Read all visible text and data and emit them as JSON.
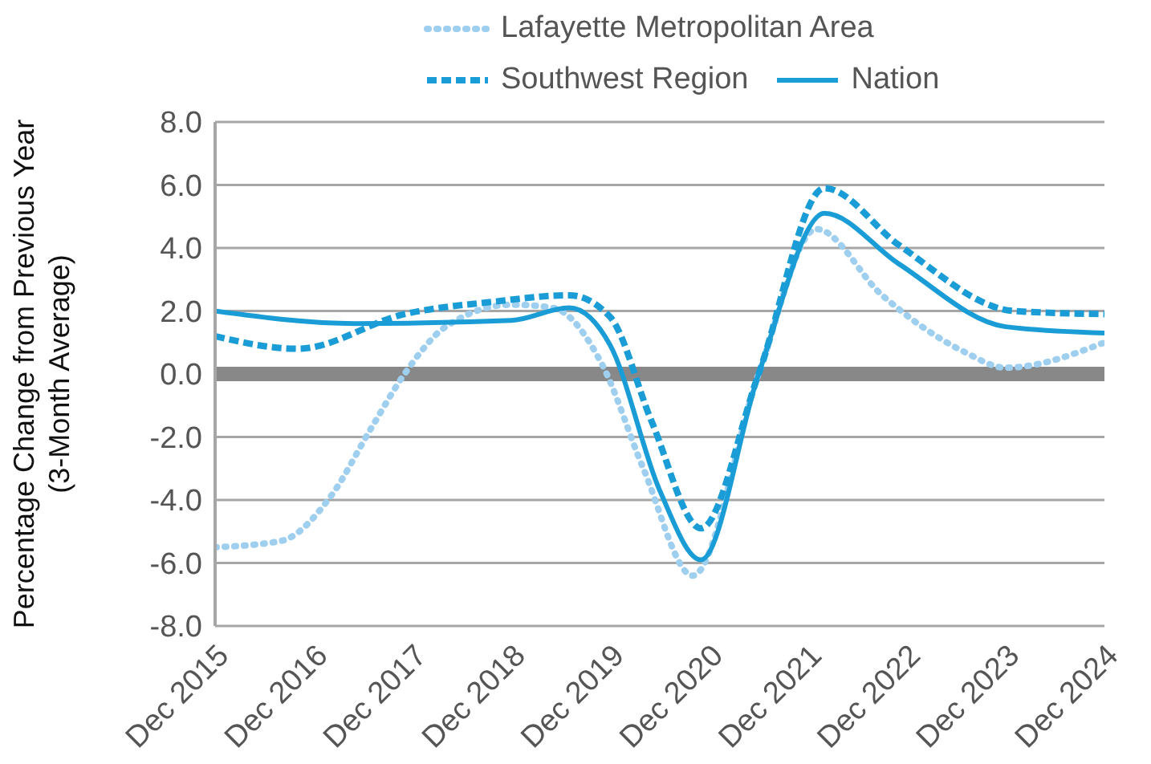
{
  "chart_data": {
    "type": "line",
    "ylabel": "Percentage Change from Previous Year (3-Month Average)",
    "xlim": [
      "2015-12",
      "2024-12"
    ],
    "xticks": [
      {
        "value": "2015-12",
        "label": "Dec 2015"
      },
      {
        "value": "2016-12",
        "label": "Dec 2016"
      },
      {
        "value": "2017-12",
        "label": "Dec 2017"
      },
      {
        "value": "2018-12",
        "label": "Dec 2018"
      },
      {
        "value": "2019-12",
        "label": "Dec 2019"
      },
      {
        "value": "2020-12",
        "label": "Dec 2020"
      },
      {
        "value": "2021-12",
        "label": "Dec 2021"
      },
      {
        "value": "2022-12",
        "label": "Dec 2022"
      },
      {
        "value": "2023-12",
        "label": "Dec 2023"
      },
      {
        "value": "2024-12",
        "label": "Dec 2024"
      }
    ],
    "ylim": [
      -8,
      8
    ],
    "yticks": [
      {
        "value": -8,
        "label": "-8.0"
      },
      {
        "value": -6,
        "label": "-6.0"
      },
      {
        "value": -4,
        "label": "-4.0"
      },
      {
        "value": -2,
        "label": "-2.0"
      },
      {
        "value": 0,
        "label": "0.0"
      },
      {
        "value": 2,
        "label": "2.0"
      },
      {
        "value": 4,
        "label": "4.0"
      },
      {
        "value": 6,
        "label": "6.0"
      },
      {
        "value": 8,
        "label": "8.0"
      }
    ],
    "grid": "y",
    "legend": "top",
    "marker": "none",
    "ref_lines": [
      {
        "axis": "y",
        "value": 0,
        "color": "#888888"
      }
    ],
    "series": [
      {
        "name": "Lafayette Metropolitan Area",
        "color": "#9fcfee",
        "line_style": "dotted",
        "x": [
          "2015-12",
          "2016-08",
          "2017-02",
          "2017-07",
          "2017-11",
          "2018-04",
          "2018-12",
          "2019-05",
          "2019-11",
          "2020-04",
          "2020-10",
          "2021-06",
          "2022-01",
          "2022-09",
          "2023-07",
          "2023-12",
          "2024-12"
        ],
        "values": [
          -5.5,
          -5.3,
          -3.9,
          -1.7,
          0,
          1.5,
          2.2,
          2.1,
          0.3,
          -3.0,
          -6.4,
          0,
          4.6,
          2.5,
          0.7,
          0.2,
          1.0
        ]
      },
      {
        "name": "Southwest Region",
        "color": "#1a9dd6",
        "line_style": "dashed",
        "x": [
          "2015-12",
          "2016-10",
          "2017-11",
          "2018-10",
          "2019-07",
          "2019-12",
          "2020-05",
          "2020-11",
          "2021-06",
          "2022-02",
          "2022-11",
          "2024-01",
          "2024-12"
        ],
        "values": [
          1.2,
          0.8,
          1.9,
          2.3,
          2.5,
          1.8,
          -1.5,
          -4.9,
          0,
          5.9,
          4.1,
          2.0,
          1.9
        ]
      },
      {
        "name": "Nation",
        "color": "#1a9dd6",
        "line_style": "solid",
        "x": [
          "2015-12",
          "2017-05",
          "2018-12",
          "2019-07",
          "2019-12",
          "2020-06",
          "2020-11",
          "2021-06",
          "2022-02",
          "2022-11",
          "2023-12",
          "2024-12"
        ],
        "values": [
          2.0,
          1.6,
          1.7,
          2.1,
          0.9,
          -3.7,
          -5.9,
          0,
          5.1,
          3.5,
          1.5,
          1.3
        ]
      }
    ]
  }
}
